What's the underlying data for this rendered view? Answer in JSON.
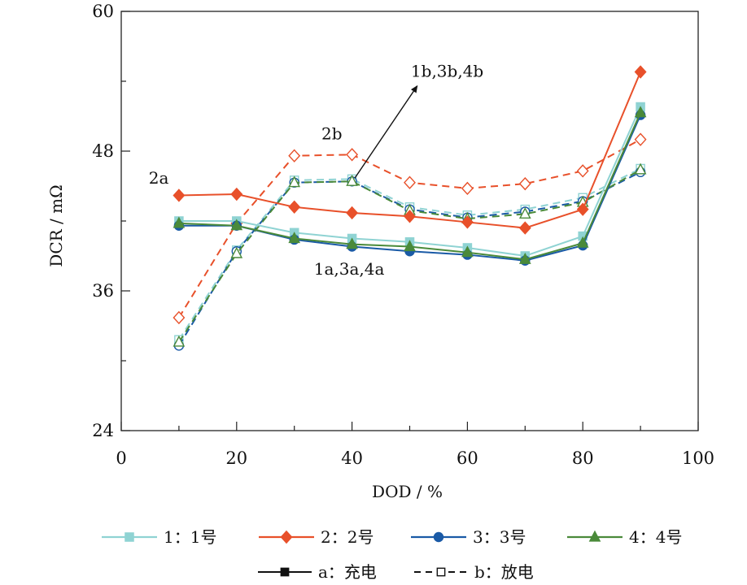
{
  "chart_data": {
    "type": "line",
    "xlabel": "DOD / %",
    "ylabel": "DCR / mΩ",
    "xlim": [
      0,
      100
    ],
    "ylim": [
      24,
      60
    ],
    "xticks": [
      0,
      20,
      40,
      60,
      80,
      100
    ],
    "yticks": [
      24,
      36,
      48,
      60
    ],
    "x": [
      10,
      20,
      30,
      40,
      50,
      60,
      70,
      80,
      90
    ],
    "series": [
      {
        "name": "1a",
        "group": "1",
        "mode": "a",
        "color": "#8fd3d3",
        "marker": "square",
        "values": [
          42.0,
          42.0,
          41.0,
          40.5,
          40.2,
          39.7,
          39.0,
          40.7,
          51.8
        ]
      },
      {
        "name": "1b",
        "group": "1",
        "mode": "b",
        "color": "#8fd3d3",
        "marker": "square",
        "values": [
          31.8,
          39.5,
          45.5,
          45.6,
          43.2,
          42.5,
          43.0,
          44.0,
          46.5
        ]
      },
      {
        "name": "2a",
        "group": "2",
        "mode": "a",
        "color": "#e8502a",
        "marker": "diamond",
        "values": [
          44.2,
          44.3,
          43.2,
          42.7,
          42.4,
          41.9,
          41.4,
          43.0,
          54.8
        ]
      },
      {
        "name": "2b",
        "group": "2",
        "mode": "b",
        "color": "#e8502a",
        "marker": "diamond",
        "values": [
          33.7,
          41.8,
          47.6,
          47.7,
          45.3,
          44.8,
          45.2,
          46.3,
          49.0
        ]
      },
      {
        "name": "3a",
        "group": "3",
        "mode": "a",
        "color": "#1a5aa6",
        "marker": "circle",
        "values": [
          41.6,
          41.6,
          40.4,
          39.8,
          39.4,
          39.1,
          38.6,
          39.9,
          51.1
        ]
      },
      {
        "name": "3b",
        "group": "3",
        "mode": "b",
        "color": "#1a5aa6",
        "marker": "circle",
        "values": [
          31.3,
          39.4,
          45.3,
          45.4,
          43.0,
          42.3,
          42.8,
          43.7,
          46.2
        ]
      },
      {
        "name": "4a",
        "group": "4",
        "mode": "a",
        "color": "#4a8a3a",
        "marker": "triangle",
        "values": [
          41.8,
          41.6,
          40.5,
          40.0,
          39.8,
          39.3,
          38.7,
          40.1,
          51.3
        ]
      },
      {
        "name": "4b",
        "group": "4",
        "mode": "b",
        "color": "#4a8a3a",
        "marker": "triangle",
        "values": [
          31.6,
          39.2,
          45.3,
          45.4,
          42.9,
          42.2,
          42.6,
          43.6,
          46.4
        ]
      }
    ],
    "annotations": [
      {
        "text": "2a",
        "x": 6.5,
        "y": 45.2
      },
      {
        "text": "2b",
        "x": 36.5,
        "y": 49.0
      },
      {
        "text": "1b,3b,4b",
        "x": 56.5,
        "y": 54.4
      },
      {
        "text": "1a,3a,4a",
        "x": 39.5,
        "y": 37.4
      }
    ],
    "arrow": {
      "from": [
        40.5,
        45.7
      ],
      "to": [
        51.3,
        53.6
      ]
    },
    "legend": {
      "placement": "bottom",
      "items": [
        {
          "label": "1：1号",
          "color": "#8fd3d3",
          "marker": "square"
        },
        {
          "label": "2：2号",
          "color": "#e8502a",
          "marker": "diamond"
        },
        {
          "label": "3：3号",
          "color": "#1a5aa6",
          "marker": "circle"
        },
        {
          "label": "4：4号",
          "color": "#4a8a3a",
          "marker": "triangle"
        }
      ],
      "styles": [
        {
          "label": "a：充电",
          "dash": false,
          "filled": true
        },
        {
          "label": "b：放电",
          "dash": true,
          "filled": false
        }
      ]
    }
  }
}
